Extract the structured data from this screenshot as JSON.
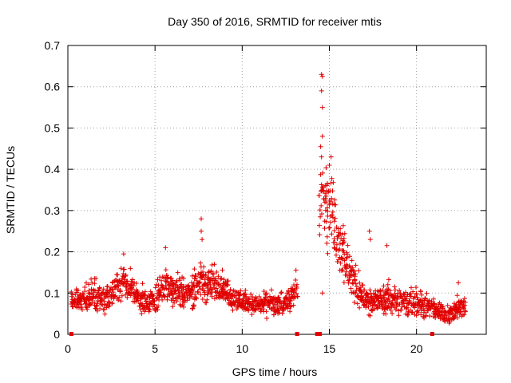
{
  "chart_data": {
    "type": "scatter",
    "title": "Day 350 of 2016, SRMTID for receiver mtis",
    "xlabel": "GPS time / hours",
    "ylabel": "SRMTID / TECUs",
    "xlim": [
      0,
      24
    ],
    "ylim": [
      0,
      0.7
    ],
    "xticks": [
      0,
      5,
      10,
      15,
      20
    ],
    "yticks": [
      0,
      0.1,
      0.2,
      0.3,
      0.4,
      0.5,
      0.6,
      0.7
    ],
    "xtick_labels": [
      "0",
      "5",
      "10",
      "15",
      "20"
    ],
    "ytick_labels": [
      "0",
      "0.1",
      "0.2",
      "0.3",
      "0.4",
      "0.5",
      "0.6",
      "0.7"
    ],
    "grid": true,
    "marker": "+",
    "color": "#e00000",
    "series": [
      {
        "name": "SRMTID",
        "profile_hours": [
          0.2,
          0.8,
          1.5,
          2.2,
          3.0,
          3.2,
          3.8,
          4.5,
          5.0,
          5.5,
          6.0,
          6.7,
          7.3,
          7.7,
          8.2,
          8.8,
          9.5,
          10.0,
          10.5,
          11.0,
          11.5,
          12.0,
          12.5,
          13.0,
          14.5,
          14.6,
          14.7,
          15.0,
          15.2,
          15.4,
          15.7,
          16.0,
          16.5,
          17.0,
          17.5,
          18.0,
          18.5,
          19.0,
          19.5,
          20.0,
          20.5,
          21.0,
          21.5,
          22.0,
          22.5,
          22.8
        ],
        "profile_center": [
          0.085,
          0.08,
          0.095,
          0.09,
          0.12,
          0.13,
          0.1,
          0.075,
          0.08,
          0.12,
          0.115,
          0.1,
          0.11,
          0.13,
          0.12,
          0.125,
          0.085,
          0.08,
          0.075,
          0.07,
          0.075,
          0.07,
          0.075,
          0.095,
          0.31,
          0.36,
          0.3,
          0.32,
          0.3,
          0.25,
          0.21,
          0.17,
          0.12,
          0.085,
          0.08,
          0.085,
          0.09,
          0.075,
          0.08,
          0.085,
          0.07,
          0.06,
          0.05,
          0.05,
          0.065,
          0.07
        ],
        "profile_spread": [
          0.02,
          0.025,
          0.035,
          0.03,
          0.035,
          0.035,
          0.03,
          0.025,
          0.03,
          0.045,
          0.04,
          0.035,
          0.04,
          0.045,
          0.04,
          0.035,
          0.025,
          0.025,
          0.02,
          0.02,
          0.025,
          0.025,
          0.025,
          0.035,
          0.09,
          0.1,
          0.09,
          0.08,
          0.07,
          0.07,
          0.06,
          0.055,
          0.04,
          0.03,
          0.025,
          0.035,
          0.035,
          0.03,
          0.035,
          0.04,
          0.025,
          0.02,
          0.02,
          0.02,
          0.025,
          0.02
        ],
        "gaps_hours": [
          [
            13.2,
            14.4
          ]
        ],
        "spikes": [
          {
            "x": 7.65,
            "y": 0.28
          },
          {
            "x": 7.65,
            "y": 0.25
          },
          {
            "x": 7.7,
            "y": 0.23
          },
          {
            "x": 14.55,
            "y": 0.63
          },
          {
            "x": 14.6,
            "y": 0.625
          },
          {
            "x": 14.55,
            "y": 0.59
          },
          {
            "x": 14.6,
            "y": 0.55
          },
          {
            "x": 14.6,
            "y": 0.48
          },
          {
            "x": 14.5,
            "y": 0.455
          },
          {
            "x": 14.55,
            "y": 0.43
          },
          {
            "x": 15.1,
            "y": 0.43
          },
          {
            "x": 15.0,
            "y": 0.41
          },
          {
            "x": 17.3,
            "y": 0.25
          },
          {
            "x": 17.35,
            "y": 0.23
          },
          {
            "x": 18.3,
            "y": 0.215
          },
          {
            "x": 5.6,
            "y": 0.21
          },
          {
            "x": 3.2,
            "y": 0.195
          },
          {
            "x": 14.6,
            "y": 0.1
          },
          {
            "x": 22.4,
            "y": 0.125
          }
        ],
        "zero_points": [
          {
            "x": 0.2,
            "y": 0.0
          },
          {
            "x": 14.3,
            "y": 0.0
          },
          {
            "x": 14.45,
            "y": 0.0
          },
          {
            "x": 13.15,
            "y": 0.0
          },
          {
            "x": 20.9,
            "y": 0.0
          }
        ]
      }
    ]
  }
}
